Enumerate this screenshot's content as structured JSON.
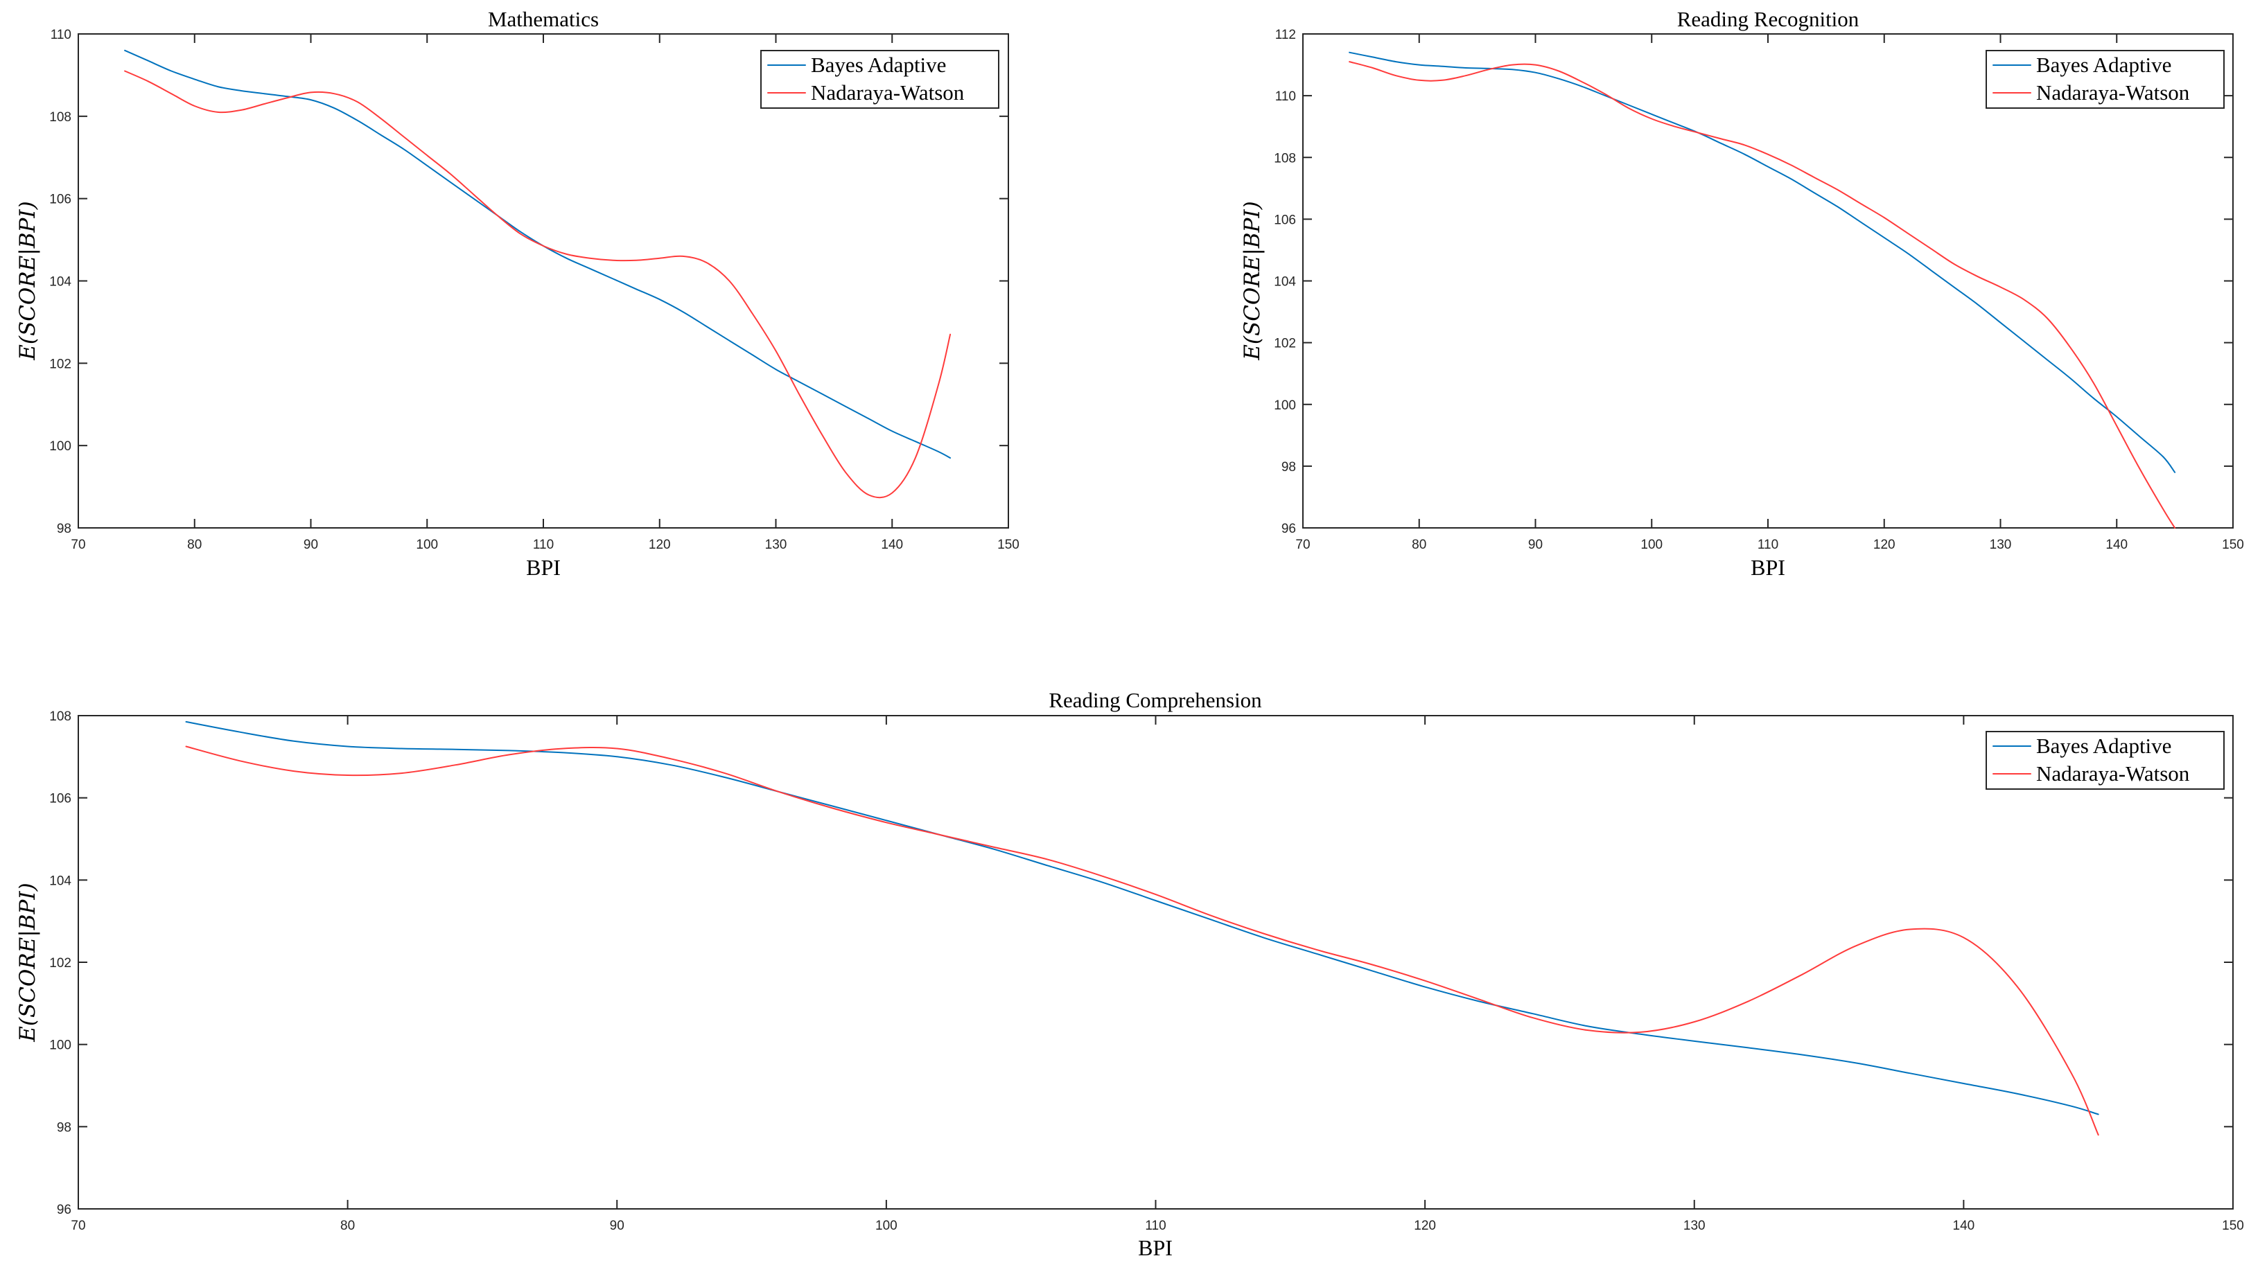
{
  "chart_data": [
    {
      "type": "line",
      "title": "Mathematics",
      "xlabel": "BPI",
      "ylabel": "E(SCORE|BPI)",
      "xlim": [
        70,
        150
      ],
      "ylim": [
        98,
        110
      ],
      "xticks": [
        70,
        80,
        90,
        100,
        110,
        120,
        130,
        140,
        150
      ],
      "yticks": [
        98,
        100,
        102,
        104,
        106,
        108,
        110
      ],
      "legend": "top-right",
      "x": [
        74,
        76,
        78,
        80,
        82,
        84,
        86,
        88,
        90,
        92,
        94,
        96,
        98,
        100,
        102,
        104,
        106,
        108,
        110,
        112,
        114,
        116,
        118,
        120,
        122,
        124,
        126,
        128,
        130,
        132,
        134,
        136,
        138,
        140,
        142,
        144,
        145
      ],
      "series": [
        {
          "name": "Bayes Adaptive",
          "color": "#0072BD",
          "values": [
            109.6,
            109.35,
            109.1,
            108.9,
            108.72,
            108.62,
            108.55,
            108.48,
            108.4,
            108.2,
            107.9,
            107.55,
            107.2,
            106.8,
            106.4,
            106.0,
            105.6,
            105.2,
            104.85,
            104.55,
            104.3,
            104.05,
            103.8,
            103.55,
            103.25,
            102.9,
            102.55,
            102.2,
            101.85,
            101.55,
            101.25,
            100.95,
            100.65,
            100.35,
            100.1,
            99.85,
            99.7
          ]
        },
        {
          "name": "Nadaraya-Watson",
          "color": "#FF3B3B",
          "values": [
            109.1,
            108.85,
            108.55,
            108.25,
            108.1,
            108.15,
            108.3,
            108.45,
            108.58,
            108.55,
            108.35,
            107.95,
            107.5,
            107.05,
            106.6,
            106.1,
            105.6,
            105.15,
            104.85,
            104.65,
            104.55,
            104.5,
            104.5,
            104.55,
            104.6,
            104.45,
            104.0,
            103.2,
            102.3,
            101.25,
            100.25,
            99.35,
            98.8,
            98.85,
            99.7,
            101.5,
            102.7
          ]
        }
      ]
    },
    {
      "type": "line",
      "title": "Reading Recognition",
      "xlabel": "BPI",
      "ylabel": "E(SCORE|BPI)",
      "xlim": [
        70,
        150
      ],
      "ylim": [
        96,
        112
      ],
      "xticks": [
        70,
        80,
        90,
        100,
        110,
        120,
        130,
        140,
        150
      ],
      "yticks": [
        96,
        98,
        100,
        102,
        104,
        106,
        108,
        110,
        112
      ],
      "legend": "top-right",
      "x": [
        74,
        76,
        78,
        80,
        82,
        84,
        86,
        88,
        90,
        92,
        94,
        96,
        98,
        100,
        102,
        104,
        106,
        108,
        110,
        112,
        114,
        116,
        118,
        120,
        122,
        124,
        126,
        128,
        130,
        132,
        134,
        136,
        138,
        140,
        142,
        144,
        145
      ],
      "series": [
        {
          "name": "Bayes Adaptive",
          "color": "#0072BD",
          "values": [
            111.4,
            111.25,
            111.1,
            111.0,
            110.95,
            110.9,
            110.88,
            110.85,
            110.75,
            110.55,
            110.3,
            110.0,
            109.7,
            109.4,
            109.1,
            108.8,
            108.45,
            108.1,
            107.7,
            107.3,
            106.85,
            106.4,
            105.9,
            105.4,
            104.9,
            104.35,
            103.8,
            103.25,
            102.65,
            102.05,
            101.45,
            100.85,
            100.2,
            99.6,
            98.95,
            98.3,
            97.8
          ]
        },
        {
          "name": "Nadaraya-Watson",
          "color": "#FF3B3B",
          "values": [
            111.1,
            110.9,
            110.65,
            110.5,
            110.5,
            110.65,
            110.85,
            111.0,
            111.0,
            110.8,
            110.45,
            110.05,
            109.6,
            109.25,
            109.0,
            108.8,
            108.6,
            108.4,
            108.1,
            107.75,
            107.35,
            106.95,
            106.5,
            106.05,
            105.55,
            105.05,
            104.55,
            104.15,
            103.8,
            103.4,
            102.8,
            101.85,
            100.7,
            99.3,
            97.9,
            96.6,
            96.0
          ]
        }
      ]
    },
    {
      "type": "line",
      "title": "Reading Comprehension",
      "xlabel": "BPI",
      "ylabel": "E(SCORE|BPI)",
      "xlim": [
        70,
        150
      ],
      "ylim": [
        96,
        108
      ],
      "xticks": [
        70,
        80,
        90,
        100,
        110,
        120,
        130,
        140,
        150
      ],
      "yticks": [
        96,
        98,
        100,
        102,
        104,
        106,
        108
      ],
      "legend": "top-right",
      "x": [
        74,
        76,
        78,
        80,
        82,
        84,
        86,
        88,
        90,
        92,
        94,
        96,
        98,
        100,
        102,
        104,
        106,
        108,
        110,
        112,
        114,
        116,
        118,
        120,
        122,
        124,
        126,
        128,
        130,
        132,
        134,
        136,
        138,
        140,
        142,
        144,
        145
      ],
      "series": [
        {
          "name": "Bayes Adaptive",
          "color": "#0072BD",
          "values": [
            107.85,
            107.6,
            107.38,
            107.25,
            107.2,
            107.18,
            107.15,
            107.1,
            107.0,
            106.8,
            106.5,
            106.15,
            105.8,
            105.45,
            105.1,
            104.75,
            104.35,
            103.95,
            103.5,
            103.05,
            102.6,
            102.2,
            101.8,
            101.4,
            101.05,
            100.75,
            100.45,
            100.25,
            100.08,
            99.92,
            99.75,
            99.55,
            99.3,
            99.05,
            98.8,
            98.5,
            98.3
          ]
        },
        {
          "name": "Nadaraya-Watson",
          "color": "#FF3B3B",
          "values": [
            107.25,
            106.9,
            106.65,
            106.55,
            106.6,
            106.8,
            107.05,
            107.2,
            107.2,
            106.95,
            106.6,
            106.15,
            105.75,
            105.4,
            105.1,
            104.8,
            104.5,
            104.1,
            103.65,
            103.15,
            102.7,
            102.3,
            101.95,
            101.55,
            101.1,
            100.65,
            100.35,
            100.3,
            100.55,
            101.05,
            101.7,
            102.4,
            102.8,
            102.6,
            101.4,
            99.3,
            97.8
          ]
        }
      ]
    }
  ]
}
